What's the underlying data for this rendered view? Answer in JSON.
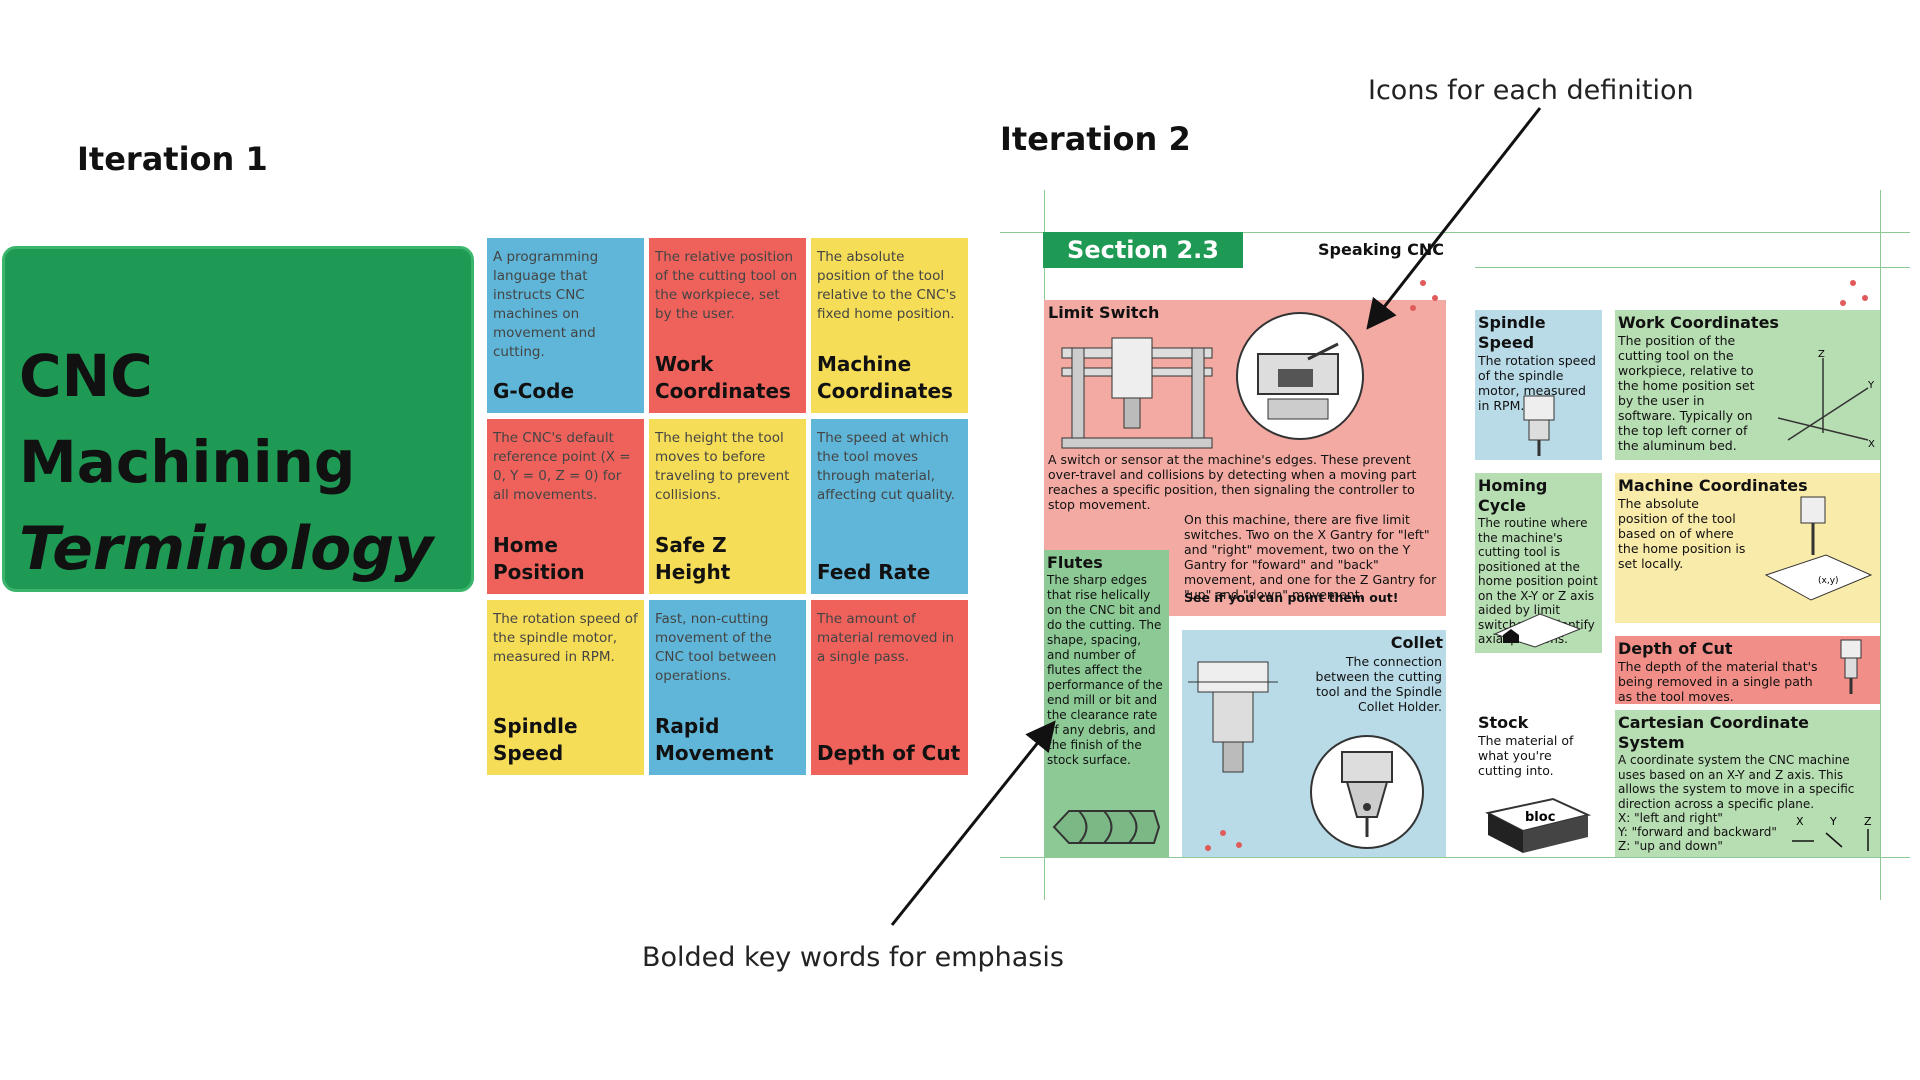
{
  "iteration1": {
    "heading": "Iteration 1",
    "banner": {
      "line1": "CNC",
      "line2": "Machining",
      "line3": "Terminology"
    },
    "cards": [
      {
        "def": "A programming language that instructs CNC machines on movement and cutting.",
        "term": "G-Code",
        "color": "#5fb6d8"
      },
      {
        "def": "The relative position of the cutting tool on the workpiece, set by the user.",
        "term": "Work Coordinates",
        "color": "#ef625c"
      },
      {
        "def": "The absolute position of the tool relative to the CNC's fixed home position.",
        "term": "Machine Coordinates",
        "color": "#f6dd57"
      },
      {
        "def": "The CNC's default reference point (X = 0, Y = 0, Z = 0) for all movements.",
        "term": "Home Position",
        "color": "#ef625c"
      },
      {
        "def": "The height the tool moves to before traveling to prevent collisions.",
        "term": "Safe Z Height",
        "color": "#f6dd57"
      },
      {
        "def": "The speed at which the tool moves through material, affecting cut quality.",
        "term": "Feed Rate",
        "color": "#5fb6d8"
      },
      {
        "def": "The rotation speed of the spindle motor, measured in RPM.",
        "term": "Spindle Speed",
        "color": "#f6dd57"
      },
      {
        "def": "Fast, non-cutting movement of the CNC tool between operations.",
        "term": "Rapid Movement",
        "color": "#5fb6d8"
      },
      {
        "def": "The amount of material removed in a single pass.",
        "term": "Depth of Cut",
        "color": "#ef625c"
      }
    ]
  },
  "iteration2": {
    "heading": "Iteration 2",
    "section_badge": "Section 2.3",
    "section_title": "Speaking CNC",
    "limit_switch": {
      "title": "Limit Switch",
      "text": "A switch or sensor at the machine's edges. These prevent over-travel and collisions by detecting when a moving part reaches a specific position, then signaling the controller to stop movement.",
      "text2": "On this machine, there are five limit switches. Two on the X Gantry for \"left\" and \"right\" movement, two on the Y Gantry for \"foward\" and \"back\" movement, and one for the Z Gantry for \"up\" and \"down\" movement.",
      "text3": "See if you can point them out!"
    },
    "flutes": {
      "title": "Flutes",
      "text": "The sharp edges that rise helically on the CNC bit and do the cutting. The shape, spacing, and number of flutes affect the performance of the end mill or bit and the clearance rate of any debris, and the finish of the stock surface."
    },
    "collet": {
      "title": "Collet",
      "text": "The connection between the cutting tool and the Spindle Collet Holder."
    },
    "spindle_speed": {
      "title": "Spindle Speed",
      "text": "The rotation speed of the spindle motor, measured in RPM."
    },
    "work_coordinates": {
      "title": "Work Coordinates",
      "text": "The position of the cutting tool on the workpiece, relative to the home position set by the user in software. Typically on the top left corner of the aluminum bed."
    },
    "homing_cycle": {
      "title": "Homing Cycle",
      "text": "The routine where the machine's cutting tool is positioned at the home position point on the X-Y or Z axis aided by limit switches to identify axial positions."
    },
    "machine_coordinates": {
      "title": "Machine Coordinates",
      "text": "The absolute position of the tool based on of where the home position is set locally.",
      "point_label": "(x,y)"
    },
    "depth_of_cut": {
      "title": "Depth of Cut",
      "text": "The depth of the material that's being removed in a single path as the tool moves."
    },
    "stock": {
      "title": "Stock",
      "text": "The material of what you're cutting into.",
      "block_label": "bloc"
    },
    "cartesian": {
      "title": "Cartesian Coordinate System",
      "text": "A coordinate system the CNC machine uses based on an X-Y and Z axis. This allows the system to move in a specific direction across a specific plane.",
      "x_line": "X: \"left and right\"",
      "y_line": "Y: \"forward and backward\"",
      "z_line": "Z: \"up and down\"",
      "axis_x": "X",
      "axis_y": "Y",
      "axis_z": "Z"
    },
    "axes_3d": {
      "x": "X",
      "y": "Y",
      "z": "Z"
    }
  },
  "annotations": {
    "icons_note": "Icons for each definition",
    "bold_note": "Bolded key words for emphasis"
  }
}
